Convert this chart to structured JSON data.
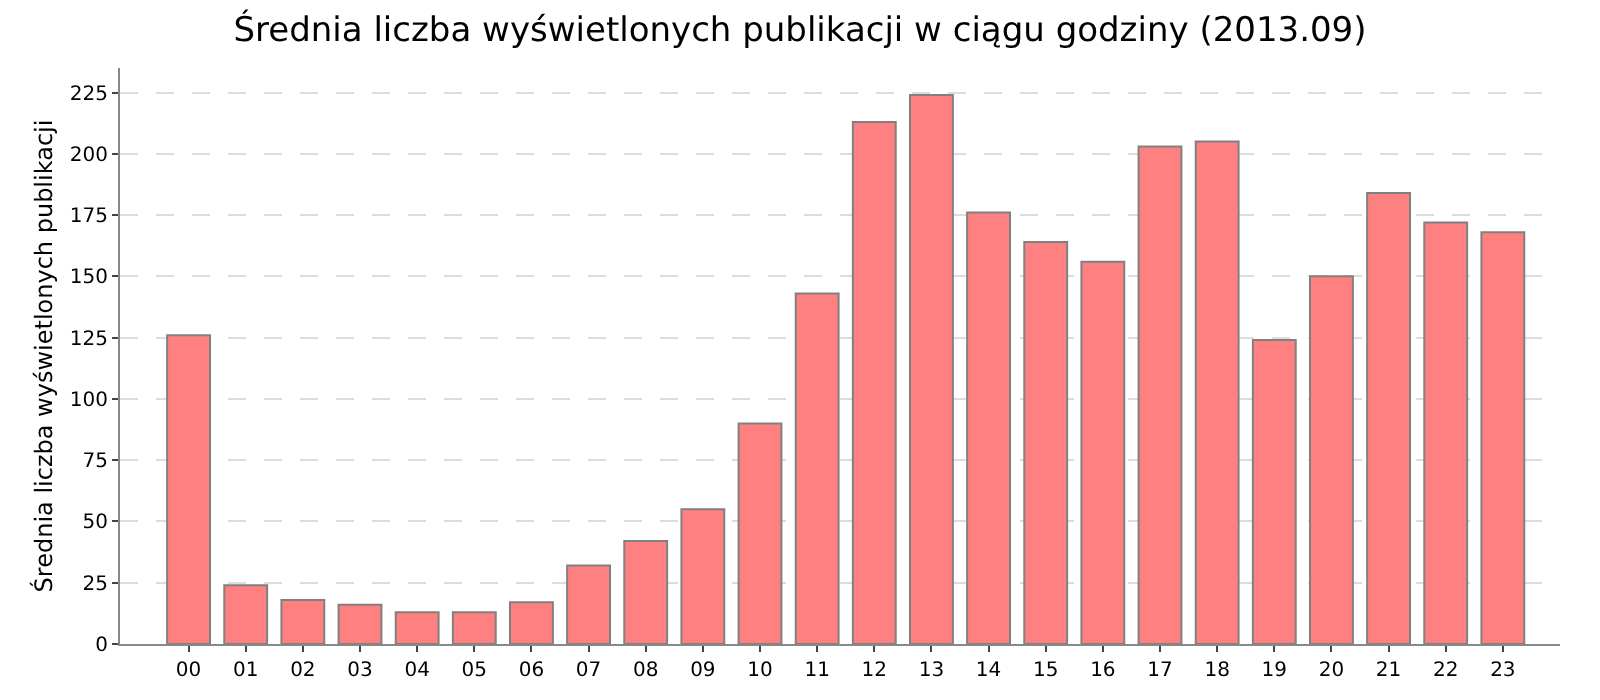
{
  "chart_data": {
    "type": "bar",
    "title": "Średnia liczba wyświetlonych publikacji w ciągu godziny (2013.09)",
    "ylabel": "Średnia liczba wyświetlonych publikacji",
    "categories": [
      "00",
      "01",
      "02",
      "03",
      "04",
      "05",
      "06",
      "07",
      "08",
      "09",
      "10",
      "11",
      "12",
      "13",
      "14",
      "15",
      "16",
      "17",
      "18",
      "19",
      "20",
      "21",
      "22",
      "23"
    ],
    "values": [
      126,
      24,
      18,
      16,
      13,
      13,
      17,
      32,
      42,
      55,
      90,
      143,
      213,
      224,
      176,
      164,
      156,
      203,
      205,
      124,
      150,
      184,
      172,
      168
    ],
    "color": "#ff8080",
    "ylim": [
      0,
      235
    ],
    "yticks": [
      0,
      25,
      50,
      75,
      100,
      125,
      150,
      175,
      200,
      225
    ],
    "grid": "y",
    "legend": false
  }
}
